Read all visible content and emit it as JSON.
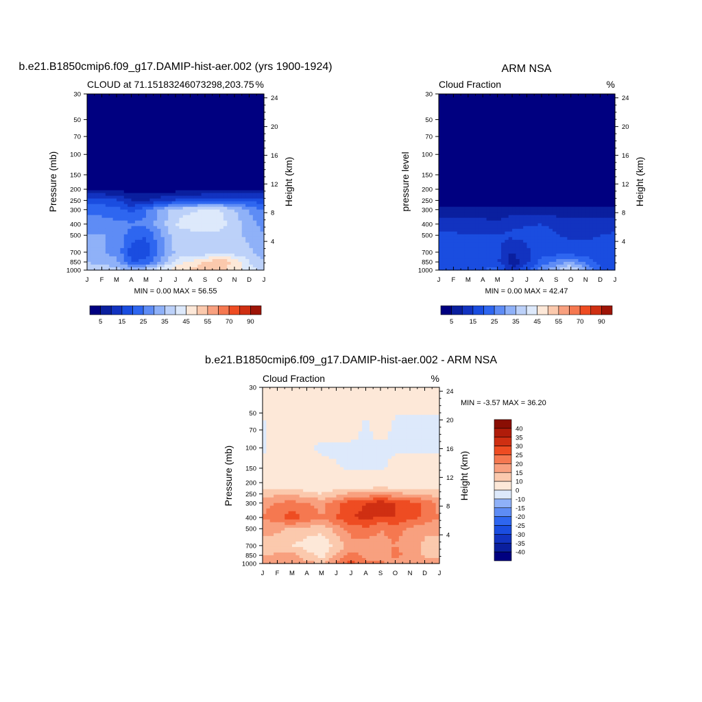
{
  "page_title": "",
  "chart_data": [
    {
      "type": "heatmap",
      "id": "model",
      "title": "b.e21.B1850cmip6.f09_g17.DAMIP-hist-aer.002 (yrs 1900-1924)",
      "left_string": "CLOUD at 71.15183246073298,203.75",
      "right_string": "%",
      "xlabel": "",
      "ylabel": "Pressure (mb)",
      "ylabel_right": "Height (km)",
      "x_tick_labels": [
        "J",
        "F",
        "M",
        "A",
        "M",
        "J",
        "J",
        "A",
        "S",
        "O",
        "N",
        "D",
        "J"
      ],
      "y_pressure_ticks": [
        30,
        50,
        70,
        100,
        150,
        200,
        250,
        300,
        400,
        500,
        700,
        850,
        1000
      ],
      "y_height_ticks": [
        4,
        8,
        12,
        16,
        20,
        24
      ],
      "stats": "MIN =   0.00 MAX =  56.55",
      "stat_min": 0.0,
      "stat_max": 56.55,
      "levels": [
        5,
        10,
        15,
        20,
        25,
        30,
        35,
        40,
        45,
        50,
        55,
        60,
        70,
        80,
        90
      ],
      "colorbar_labels": [
        "5",
        "15",
        "25",
        "35",
        "45",
        "55",
        "70",
        "90"
      ],
      "palette": [
        "#000080",
        "#0a1f9e",
        "#1233c0",
        "#1a4de0",
        "#2e66f0",
        "#5e8cf5",
        "#8fb1f8",
        "#bcd1f9",
        "#dde9fb",
        "#fde8d8",
        "#fbc9ad",
        "#f8a07f",
        "#f57850",
        "#ee4c22",
        "#cf2f12",
        "#9e1407"
      ],
      "profiles": [
        {
          "month": 0,
          "values": {
            "30": 0,
            "100": 0,
            "150": 1,
            "200": 5,
            "250": 18,
            "300": 24,
            "400": 28,
            "500": 30,
            "700": 33,
            "850": 35,
            "1000": 38
          }
        },
        {
          "month": 2,
          "values": {
            "30": 0,
            "100": 0,
            "150": 1,
            "200": 4,
            "250": 16,
            "300": 22,
            "400": 26,
            "500": 30,
            "700": 28,
            "850": 32,
            "1000": 37
          }
        },
        {
          "month": 3,
          "values": {
            "30": 0,
            "100": 0,
            "150": 0,
            "200": 2,
            "250": 10,
            "300": 18,
            "400": 26,
            "500": 22,
            "700": 18,
            "850": 20,
            "1000": 35
          }
        },
        {
          "month": 4,
          "values": {
            "30": 0,
            "100": 0,
            "150": 0,
            "200": 2,
            "250": 10,
            "300": 24,
            "400": 26,
            "500": 20,
            "700": 17,
            "850": 21,
            "1000": 38
          }
        },
        {
          "month": 6,
          "values": {
            "30": 0,
            "100": 0,
            "150": 0,
            "200": 2,
            "250": 16,
            "300": 38,
            "400": 40,
            "500": 38,
            "700": 36,
            "850": 42,
            "1000": 48
          }
        },
        {
          "month": 8,
          "values": {
            "30": 0,
            "100": 0,
            "150": 0,
            "200": 2,
            "250": 20,
            "300": 40,
            "400": 45,
            "500": 38,
            "700": 36,
            "850": 50,
            "1000": 54
          }
        },
        {
          "month": 9,
          "values": {
            "30": 0,
            "100": 0,
            "150": 0,
            "200": 3,
            "250": 20,
            "300": 40,
            "400": 43,
            "500": 38,
            "700": 38,
            "850": 56,
            "1000": 52
          }
        },
        {
          "month": 11,
          "values": {
            "30": 0,
            "100": 0,
            "150": 1,
            "200": 5,
            "250": 18,
            "300": 30,
            "400": 32,
            "500": 34,
            "700": 36,
            "850": 40,
            "1000": 42
          }
        },
        {
          "month": 12,
          "values": {
            "30": 0,
            "100": 0,
            "150": 1,
            "200": 5,
            "250": 18,
            "300": 24,
            "400": 28,
            "500": 30,
            "700": 33,
            "850": 35,
            "1000": 38
          }
        }
      ]
    },
    {
      "type": "heatmap",
      "id": "obs",
      "title": "ARM NSA",
      "left_string": "Cloud Fraction",
      "right_string": "%",
      "xlabel": "",
      "ylabel": "pressure level",
      "ylabel_right": "Height (km)",
      "x_tick_labels": [
        "J",
        "F",
        "M",
        "A",
        "M",
        "J",
        "J",
        "A",
        "S",
        "O",
        "N",
        "D",
        "J"
      ],
      "y_pressure_ticks": [
        30,
        50,
        70,
        100,
        150,
        200,
        250,
        300,
        400,
        500,
        700,
        850,
        1000
      ],
      "y_height_ticks": [
        4,
        8,
        12,
        16,
        20,
        24
      ],
      "stats": "MIN =   0.00 MAX =  42.47",
      "stat_min": 0.0,
      "stat_max": 42.47,
      "levels": [
        5,
        10,
        15,
        20,
        25,
        30,
        35,
        40,
        45,
        50,
        55,
        60,
        70,
        80,
        90
      ],
      "colorbar_labels": [
        "5",
        "15",
        "25",
        "35",
        "45",
        "55",
        "70",
        "90"
      ],
      "palette": [
        "#000080",
        "#0a1f9e",
        "#1233c0",
        "#1a4de0",
        "#2e66f0",
        "#5e8cf5",
        "#8fb1f8",
        "#bcd1f9",
        "#dde9fb",
        "#fde8d8",
        "#fbc9ad",
        "#f8a07f",
        "#f57850",
        "#ee4c22",
        "#cf2f12",
        "#9e1407"
      ],
      "profiles": [
        {
          "month": 0,
          "values": {
            "30": 0,
            "100": 0,
            "150": 0,
            "200": 0,
            "250": 2,
            "300": 7,
            "400": 13,
            "500": 16,
            "700": 16,
            "850": 15,
            "1000": 16
          }
        },
        {
          "month": 2,
          "values": {
            "30": 0,
            "100": 0,
            "150": 0,
            "200": 0,
            "250": 1,
            "300": 6,
            "400": 14,
            "500": 15,
            "700": 17,
            "850": 15,
            "1000": 19
          }
        },
        {
          "month": 4,
          "values": {
            "30": 0,
            "100": 0,
            "150": 0,
            "200": 0,
            "250": 1,
            "300": 6,
            "400": 11,
            "500": 15,
            "700": 17,
            "850": 16,
            "1000": 22
          }
        },
        {
          "month": 5,
          "values": {
            "30": 0,
            "100": 0,
            "150": 0,
            "200": 0,
            "250": 1,
            "300": 7,
            "400": 14,
            "500": 16,
            "700": 10,
            "850": 6,
            "1000": 12
          }
        },
        {
          "month": 7,
          "values": {
            "30": 0,
            "100": 0,
            "150": 0,
            "200": 0,
            "250": 1,
            "300": 7,
            "400": 15,
            "500": 17,
            "700": 18,
            "850": 22,
            "1000": 28
          }
        },
        {
          "month": 9,
          "values": {
            "30": 0,
            "100": 0,
            "150": 0,
            "200": 0,
            "250": 1,
            "300": 7,
            "400": 12,
            "500": 14,
            "700": 17,
            "850": 30,
            "1000": 42
          }
        },
        {
          "month": 11,
          "values": {
            "30": 0,
            "100": 0,
            "150": 0,
            "200": 0,
            "250": 1,
            "300": 7,
            "400": 12,
            "500": 15,
            "700": 16,
            "850": 18,
            "1000": 20
          }
        },
        {
          "month": 12,
          "values": {
            "30": 0,
            "100": 0,
            "150": 0,
            "200": 0,
            "250": 2,
            "300": 7,
            "400": 13,
            "500": 16,
            "700": 16,
            "850": 15,
            "1000": 16
          }
        }
      ]
    },
    {
      "type": "heatmap",
      "id": "diff",
      "title": "b.e21.B1850cmip6.f09_g17.DAMIP-hist-aer.002 - ARM NSA",
      "left_string": "Cloud Fraction",
      "right_string": "%",
      "xlabel": "",
      "ylabel": "Pressure (mb)",
      "ylabel_right": "Height (km)",
      "x_tick_labels": [
        "J",
        "F",
        "M",
        "A",
        "M",
        "J",
        "J",
        "A",
        "S",
        "O",
        "N",
        "D",
        "J"
      ],
      "y_pressure_ticks": [
        30,
        50,
        70,
        100,
        150,
        200,
        250,
        300,
        400,
        500,
        700,
        850,
        1000
      ],
      "y_height_ticks": [
        4,
        8,
        12,
        16,
        20,
        24
      ],
      "stats": "MIN =  -3.57 MAX =  36.20",
      "stat_min": -3.57,
      "stat_max": 36.2,
      "levels": [
        -40,
        -35,
        -30,
        -25,
        -20,
        -15,
        -10,
        0,
        10,
        15,
        20,
        25,
        30,
        35,
        40
      ],
      "colorbar_labels": [
        "40",
        "35",
        "30",
        "25",
        "20",
        "15",
        "10",
        "0",
        "-10",
        "-15",
        "-20",
        "-25",
        "-30",
        "-35",
        "-40"
      ],
      "palette": [
        "#000080",
        "#0a1f9e",
        "#1233c0",
        "#1a4de0",
        "#2e66f0",
        "#5e8cf5",
        "#8fb1f8",
        "#dde9fb",
        "#fde8d8",
        "#fbc9ad",
        "#f8a07f",
        "#f57850",
        "#ee4c22",
        "#cf2f12",
        "#b01c0a",
        "#8a0e04"
      ],
      "profiles": [
        {
          "month": 0,
          "values": {
            "30": 2,
            "70": -1,
            "100": -1,
            "150": 2,
            "200": 5,
            "250": 12,
            "300": 18,
            "400": 20,
            "500": 16,
            "700": 14,
            "850": 14,
            "1000": 20
          }
        },
        {
          "month": 1,
          "values": {
            "30": 2,
            "70": 2,
            "100": 2,
            "150": 2,
            "200": 5,
            "250": 14,
            "300": 20,
            "400": 24,
            "500": 16,
            "700": 13,
            "850": 16,
            "1000": 20
          }
        },
        {
          "month": 2,
          "values": {
            "30": 2,
            "70": 2,
            "100": 2,
            "150": 2,
            "200": 5,
            "250": 14,
            "300": 22,
            "400": 28,
            "500": 14,
            "700": 10,
            "850": 17,
            "1000": 18
          }
        },
        {
          "month": 4,
          "values": {
            "30": 2,
            "70": 2,
            "100": -1,
            "150": 2,
            "200": 4,
            "250": 10,
            "300": 18,
            "400": 20,
            "500": 12,
            "700": 5,
            "850": 8,
            "1000": 15
          }
        },
        {
          "month": 6,
          "values": {
            "30": 2,
            "70": 2,
            "100": -1,
            "150": -1,
            "200": 4,
            "250": 16,
            "300": 28,
            "400": 30,
            "500": 22,
            "700": 18,
            "850": 22,
            "1000": 27
          }
        },
        {
          "month": 7,
          "values": {
            "30": 2,
            "70": -1,
            "100": -1,
            "150": -1,
            "200": 4,
            "250": 16,
            "300": 30,
            "400": 31,
            "500": 24,
            "700": 17,
            "850": 18,
            "1000": 22
          }
        },
        {
          "month": 8,
          "values": {
            "30": 2,
            "70": 2,
            "100": -1,
            "150": -1,
            "200": 4,
            "250": 18,
            "300": 33,
            "400": 30,
            "500": 20,
            "700": 18,
            "850": 16,
            "1000": 22
          }
        },
        {
          "month": 9,
          "values": {
            "30": 2,
            "70": -1,
            "100": -1,
            "150": 2,
            "200": 4,
            "250": 16,
            "300": 30,
            "400": 30,
            "500": 22,
            "700": 20,
            "850": 22,
            "1000": 15
          }
        },
        {
          "month": 11,
          "values": {
            "30": 2,
            "70": -1,
            "100": -1,
            "150": 2,
            "200": 5,
            "250": 14,
            "300": 24,
            "400": 24,
            "500": 16,
            "700": 14,
            "850": 14,
            "1000": 20
          }
        },
        {
          "month": 12,
          "values": {
            "30": 2,
            "70": -1,
            "100": -1,
            "150": 2,
            "200": 5,
            "250": 12,
            "300": 18,
            "400": 20,
            "500": 16,
            "700": 14,
            "850": 14,
            "1000": 20
          }
        }
      ]
    }
  ]
}
